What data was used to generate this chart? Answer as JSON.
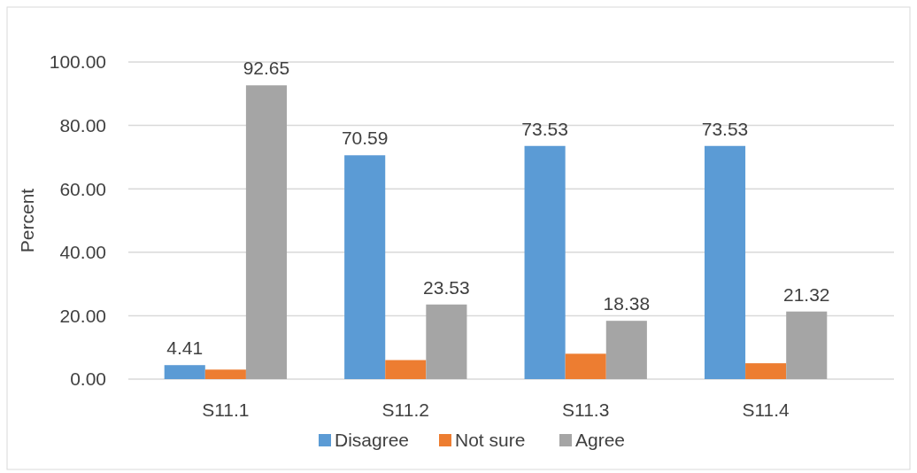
{
  "chart_data": {
    "type": "bar",
    "categories": [
      "S11.1",
      "S11.2",
      "S11.3",
      "S11.4"
    ],
    "ylabel": "Percent",
    "series": [
      {
        "name": "Disagree",
        "color": "#5b9bd5",
        "values": [
          4.41,
          70.59,
          73.53,
          73.53
        ],
        "value_labels": [
          "4.41",
          "70.59",
          "73.53",
          "73.53"
        ]
      },
      {
        "name": "Not sure",
        "color": "#ed7d31",
        "values": [
          3,
          6,
          8,
          5
        ]
      },
      {
        "name": "Agree",
        "color": "#a5a5a5",
        "values": [
          92.65,
          23.53,
          18.38,
          21.32
        ],
        "value_labels": [
          "92.65",
          "23.53",
          "18.38",
          "21.32"
        ]
      }
    ],
    "ylim": [
      0,
      100
    ],
    "yticks": [
      {
        "value": 0,
        "label": "0.00"
      },
      {
        "value": 20,
        "label": "20.00"
      },
      {
        "value": 40,
        "label": "40.00"
      },
      {
        "value": 60,
        "label": "60.00"
      },
      {
        "value": 80,
        "label": "80.00"
      },
      {
        "value": 100,
        "label": "100.00"
      }
    ],
    "grid": "y",
    "legend": "bottom"
  }
}
